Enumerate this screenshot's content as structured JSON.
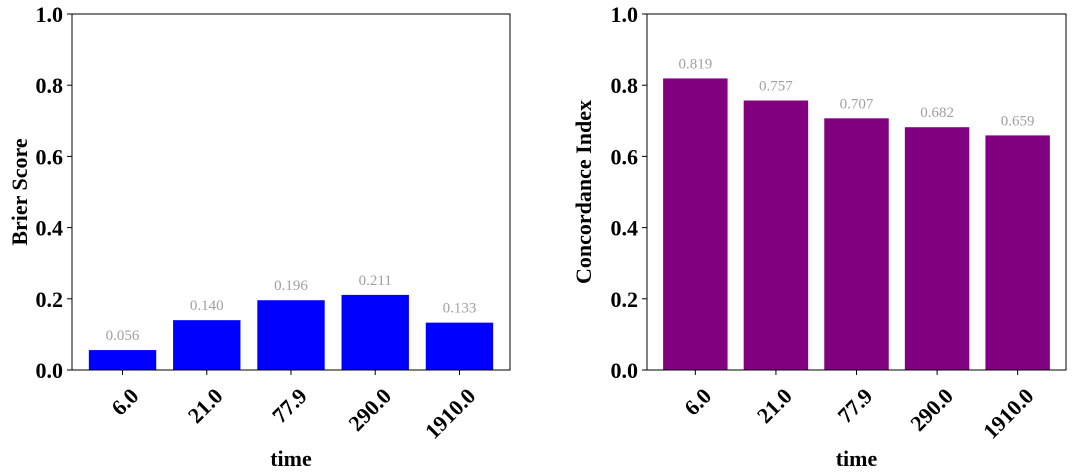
{
  "chart_data": [
    {
      "type": "bar",
      "categories": [
        "6.0",
        "21.0",
        "77.9",
        "290.0",
        "1910.0"
      ],
      "values": [
        0.056,
        0.14,
        0.196,
        0.211,
        0.133
      ],
      "data_labels": [
        "0.056",
        "0.140",
        "0.196",
        "0.211",
        "0.133"
      ],
      "xlabel": "time",
      "ylabel": "Brier Score",
      "ylim": [
        0,
        1.0
      ],
      "yticks": [
        "0.0",
        "0.2",
        "0.4",
        "0.6",
        "0.8",
        "1.0"
      ],
      "bar_color": "#0000ff",
      "grid": false
    },
    {
      "type": "bar",
      "categories": [
        "6.0",
        "21.0",
        "77.9",
        "290.0",
        "1910.0"
      ],
      "values": [
        0.819,
        0.757,
        0.707,
        0.682,
        0.659
      ],
      "data_labels": [
        "0.819",
        "0.757",
        "0.707",
        "0.682",
        "0.659"
      ],
      "xlabel": "time",
      "ylabel": "Concordance Index",
      "ylim": [
        0,
        1.0
      ],
      "yticks": [
        "0.0",
        "0.2",
        "0.4",
        "0.6",
        "0.8",
        "1.0"
      ],
      "bar_color": "#800080",
      "grid": false
    }
  ]
}
